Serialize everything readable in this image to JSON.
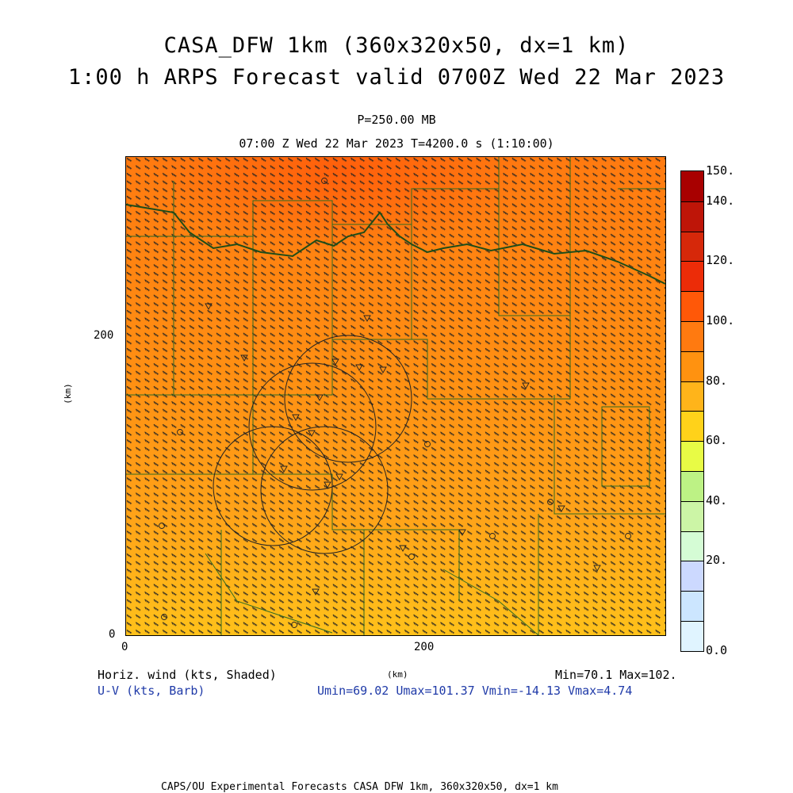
{
  "title": {
    "line1": "CASA_DFW 1km (360x320x50, dx=1 km)",
    "line2": "1:00 h ARPS Forecast valid 0700Z Wed 22 Mar 2023"
  },
  "level_label": "P=250.00 MB",
  "time_label": "07:00 Z Wed 22 Mar 2023    T=4200.0 s (1:10:00)",
  "axes": {
    "x_unit": "(km)",
    "y_unit": "(km)",
    "x_ticks": [
      "0",
      "200"
    ],
    "y_ticks": [
      "0",
      "200"
    ],
    "x_range_km": [
      0,
      360
    ],
    "y_range_km": [
      0,
      320
    ]
  },
  "colorbar": {
    "labels": [
      "150.",
      "140.",
      "120.",
      "100.",
      "80.",
      "60.",
      "40.",
      "20.",
      "0.0"
    ],
    "colors": [
      "#e0f4ff",
      "#cce6ff",
      "#ccd9ff",
      "#d5fcd5",
      "#ccf5a6",
      "#bdf285",
      "#e8fb45",
      "#ffd21a",
      "#ffb41a",
      "#ff9210",
      "#ff7a10",
      "#ff5808",
      "#ec2c08",
      "#d6280a",
      "#be1508",
      "#a80000"
    ]
  },
  "legend": {
    "field_label": "Horiz. wind (kts, Shaded)",
    "vector_label": "U-V (kts, Barb)",
    "minmax": "Min=70.1 Max=102.",
    "uv_stats": "Umin=69.02 Umax=101.37 Vmin=-14.13 Vmax=4.74"
  },
  "footer": "CAPS/OU Experimental Forecasts  CASA DFW 1km, 360x320x50, dx=1 km",
  "field_stats": {
    "min": 70.1,
    "max": 102.0
  }
}
